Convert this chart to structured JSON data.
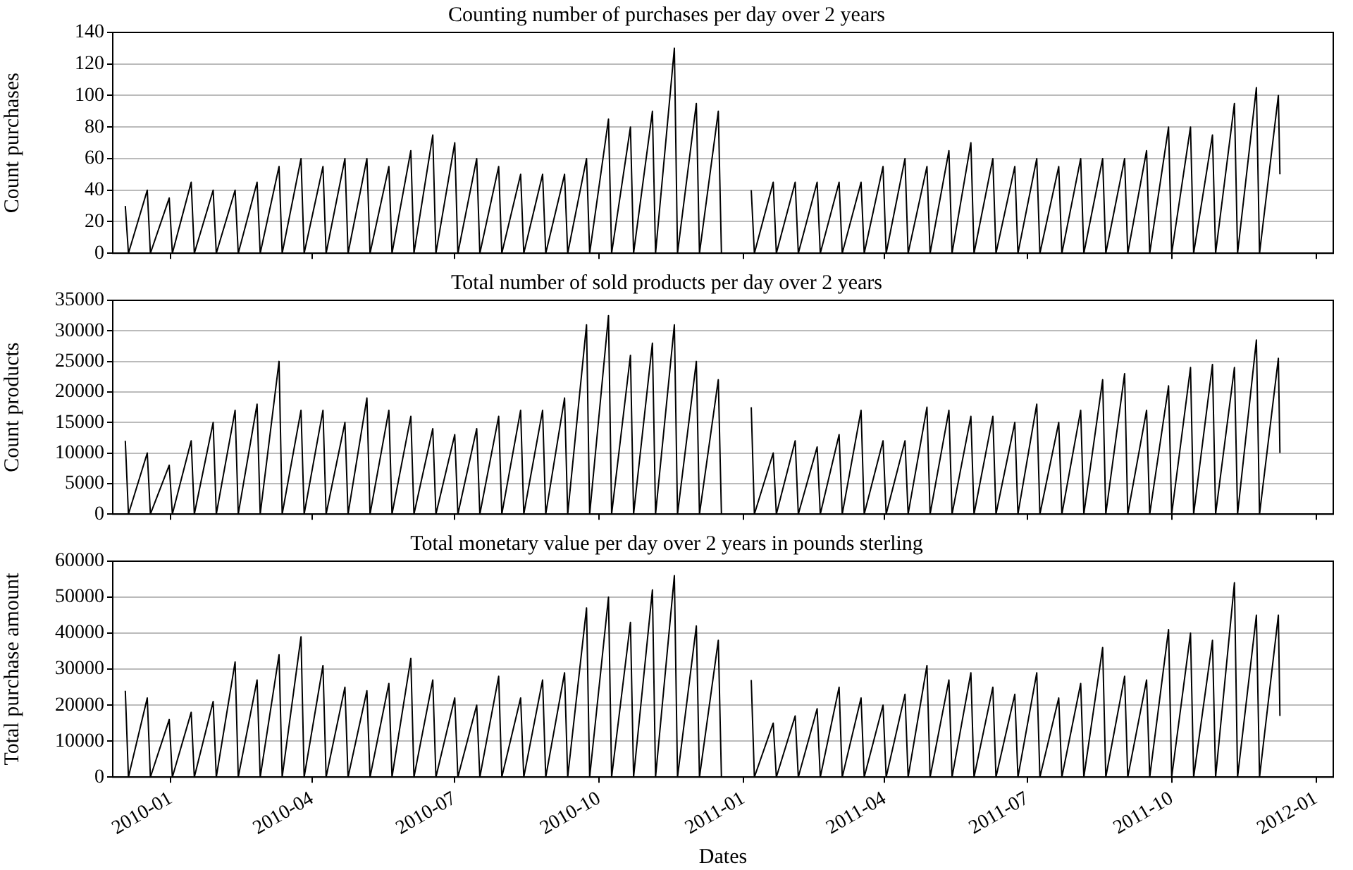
{
  "chart_data": [
    {
      "type": "line",
      "title": "Counting number of purchases per day over 2 years",
      "ylabel": "Count purchases",
      "color": "#000000",
      "grid": "y",
      "legend": false,
      "tick_labels": "y",
      "xlim": [
        "2009-11-25",
        "2012-01-12"
      ],
      "xticks": [
        "2010-01",
        "2010-04",
        "2010-07",
        "2010-10",
        "2011-01",
        "2011-04",
        "2011-07",
        "2011-10",
        "2012-01"
      ],
      "ylim": [
        0,
        140
      ],
      "yticks": [
        0,
        20,
        40,
        60,
        80,
        100,
        120,
        140
      ],
      "x": [
        "2009-12-03",
        "2009-12-05",
        "2009-12-17",
        "2009-12-19",
        "2009-12-31",
        "2010-01-02",
        "2010-01-14",
        "2010-01-16",
        "2010-01-28",
        "2010-01-30",
        "2010-02-11",
        "2010-02-13",
        "2010-02-25",
        "2010-02-27",
        "2010-03-11",
        "2010-03-13",
        "2010-03-25",
        "2010-03-27",
        "2010-04-08",
        "2010-04-10",
        "2010-04-22",
        "2010-04-24",
        "2010-05-06",
        "2010-05-08",
        "2010-05-20",
        "2010-05-22",
        "2010-06-03",
        "2010-06-05",
        "2010-06-17",
        "2010-06-19",
        "2010-07-01",
        "2010-07-03",
        "2010-07-15",
        "2010-07-17",
        "2010-07-29",
        "2010-07-31",
        "2010-08-12",
        "2010-08-14",
        "2010-08-26",
        "2010-08-28",
        "2010-09-09",
        "2010-09-11",
        "2010-09-23",
        "2010-09-25",
        "2010-10-07",
        "2010-10-09",
        "2010-10-21",
        "2010-10-23",
        "2010-11-04",
        "2010-11-06",
        "2010-11-18",
        "2010-11-20",
        "2010-12-02",
        "2010-12-04",
        "2010-12-16",
        "2010-12-18",
        "2010-12-30",
        "2011-01-06",
        "2011-01-08",
        "2011-01-20",
        "2011-01-22",
        "2011-02-03",
        "2011-02-05",
        "2011-02-17",
        "2011-02-19",
        "2011-03-03",
        "2011-03-05",
        "2011-03-17",
        "2011-03-19",
        "2011-03-31",
        "2011-04-02",
        "2011-04-14",
        "2011-04-16",
        "2011-04-28",
        "2011-04-30",
        "2011-05-12",
        "2011-05-14",
        "2011-05-26",
        "2011-05-28",
        "2011-06-09",
        "2011-06-11",
        "2011-06-23",
        "2011-06-25",
        "2011-07-07",
        "2011-07-09",
        "2011-07-21",
        "2011-07-23",
        "2011-08-04",
        "2011-08-06",
        "2011-08-18",
        "2011-08-20",
        "2011-09-01",
        "2011-09-03",
        "2011-09-15",
        "2011-09-17",
        "2011-09-29",
        "2011-10-01",
        "2011-10-13",
        "2011-10-15",
        "2011-10-27",
        "2011-10-29",
        "2011-11-10",
        "2011-11-12",
        "2011-11-24",
        "2011-11-26",
        "2011-12-08",
        "2011-12-09"
      ],
      "values": [
        30,
        0,
        40,
        0,
        35,
        0,
        45,
        0,
        40,
        0,
        40,
        0,
        45,
        0,
        55,
        0,
        60,
        0,
        55,
        0,
        60,
        0,
        60,
        0,
        55,
        0,
        65,
        0,
        75,
        0,
        70,
        0,
        60,
        0,
        55,
        0,
        50,
        0,
        50,
        0,
        50,
        0,
        60,
        0,
        85,
        0,
        80,
        0,
        90,
        0,
        130,
        0,
        95,
        0,
        90,
        0,
        null,
        40,
        0,
        45,
        0,
        45,
        0,
        45,
        0,
        45,
        0,
        45,
        0,
        55,
        0,
        60,
        0,
        55,
        0,
        65,
        0,
        70,
        0,
        60,
        0,
        55,
        0,
        60,
        0,
        55,
        0,
        60,
        0,
        60,
        0,
        60,
        0,
        65,
        0,
        80,
        0,
        80,
        0,
        75,
        0,
        95,
        0,
        105,
        0,
        100,
        50
      ]
    },
    {
      "type": "line",
      "title": "Total number of sold products per day over 2 years",
      "ylabel": "Count products",
      "color": "#000000",
      "grid": "y",
      "legend": false,
      "tick_labels": "y",
      "xlim": [
        "2009-11-25",
        "2012-01-12"
      ],
      "xticks": [
        "2010-01",
        "2010-04",
        "2010-07",
        "2010-10",
        "2011-01",
        "2011-04",
        "2011-07",
        "2011-10",
        "2012-01"
      ],
      "ylim": [
        0,
        35000
      ],
      "yticks": [
        0,
        5000,
        10000,
        15000,
        20000,
        25000,
        30000,
        35000
      ],
      "x": [
        "2009-12-03",
        "2009-12-05",
        "2009-12-17",
        "2009-12-19",
        "2009-12-31",
        "2010-01-02",
        "2010-01-14",
        "2010-01-16",
        "2010-01-28",
        "2010-01-30",
        "2010-02-11",
        "2010-02-13",
        "2010-02-25",
        "2010-02-27",
        "2010-03-11",
        "2010-03-13",
        "2010-03-25",
        "2010-03-27",
        "2010-04-08",
        "2010-04-10",
        "2010-04-22",
        "2010-04-24",
        "2010-05-06",
        "2010-05-08",
        "2010-05-20",
        "2010-05-22",
        "2010-06-03",
        "2010-06-05",
        "2010-06-17",
        "2010-06-19",
        "2010-07-01",
        "2010-07-03",
        "2010-07-15",
        "2010-07-17",
        "2010-07-29",
        "2010-07-31",
        "2010-08-12",
        "2010-08-14",
        "2010-08-26",
        "2010-08-28",
        "2010-09-09",
        "2010-09-11",
        "2010-09-23",
        "2010-09-25",
        "2010-10-07",
        "2010-10-09",
        "2010-10-21",
        "2010-10-23",
        "2010-11-04",
        "2010-11-06",
        "2010-11-18",
        "2010-11-20",
        "2010-12-02",
        "2010-12-04",
        "2010-12-16",
        "2010-12-18",
        "2010-12-30",
        "2011-01-06",
        "2011-01-08",
        "2011-01-20",
        "2011-01-22",
        "2011-02-03",
        "2011-02-05",
        "2011-02-17",
        "2011-02-19",
        "2011-03-03",
        "2011-03-05",
        "2011-03-17",
        "2011-03-19",
        "2011-03-31",
        "2011-04-02",
        "2011-04-14",
        "2011-04-16",
        "2011-04-28",
        "2011-04-30",
        "2011-05-12",
        "2011-05-14",
        "2011-05-26",
        "2011-05-28",
        "2011-06-09",
        "2011-06-11",
        "2011-06-23",
        "2011-06-25",
        "2011-07-07",
        "2011-07-09",
        "2011-07-21",
        "2011-07-23",
        "2011-08-04",
        "2011-08-06",
        "2011-08-18",
        "2011-08-20",
        "2011-09-01",
        "2011-09-03",
        "2011-09-15",
        "2011-09-17",
        "2011-09-29",
        "2011-10-01",
        "2011-10-13",
        "2011-10-15",
        "2011-10-27",
        "2011-10-29",
        "2011-11-10",
        "2011-11-12",
        "2011-11-24",
        "2011-11-26",
        "2011-12-08",
        "2011-12-09"
      ],
      "values": [
        12000,
        0,
        10000,
        0,
        8000,
        0,
        12000,
        0,
        15000,
        0,
        17000,
        0,
        18000,
        0,
        25000,
        0,
        17000,
        0,
        17000,
        0,
        15000,
        0,
        19000,
        0,
        17000,
        0,
        16000,
        0,
        14000,
        0,
        13000,
        0,
        14000,
        0,
        16000,
        0,
        17000,
        0,
        17000,
        0,
        19000,
        0,
        31000,
        0,
        32500,
        0,
        26000,
        0,
        28000,
        0,
        31000,
        0,
        25000,
        0,
        22000,
        0,
        null,
        17500,
        0,
        10000,
        0,
        12000,
        0,
        11000,
        0,
        13000,
        0,
        17000,
        0,
        12000,
        0,
        12000,
        0,
        17500,
        0,
        17000,
        0,
        16000,
        0,
        16000,
        0,
        15000,
        0,
        18000,
        0,
        15000,
        0,
        17000,
        0,
        22000,
        0,
        23000,
        0,
        17000,
        0,
        21000,
        0,
        24000,
        0,
        24500,
        0,
        24000,
        0,
        28500,
        0,
        25500,
        10000
      ]
    },
    {
      "type": "line",
      "title": "Total monetary value per day over 2 years in pounds sterling",
      "xlabel": "Dates",
      "ylabel": "Total purchase amount",
      "color": "#000000",
      "grid": "y",
      "legend": false,
      "xlim": [
        "2009-11-25",
        "2012-01-12"
      ],
      "xticks": [
        "2010-01",
        "2010-04",
        "2010-07",
        "2010-10",
        "2011-01",
        "2011-04",
        "2011-07",
        "2011-10",
        "2012-01"
      ],
      "ylim": [
        0,
        60000
      ],
      "yticks": [
        0,
        10000,
        20000,
        30000,
        40000,
        50000,
        60000
      ],
      "x": [
        "2009-12-03",
        "2009-12-05",
        "2009-12-17",
        "2009-12-19",
        "2009-12-31",
        "2010-01-02",
        "2010-01-14",
        "2010-01-16",
        "2010-01-28",
        "2010-01-30",
        "2010-02-11",
        "2010-02-13",
        "2010-02-25",
        "2010-02-27",
        "2010-03-11",
        "2010-03-13",
        "2010-03-25",
        "2010-03-27",
        "2010-04-08",
        "2010-04-10",
        "2010-04-22",
        "2010-04-24",
        "2010-05-06",
        "2010-05-08",
        "2010-05-20",
        "2010-05-22",
        "2010-06-03",
        "2010-06-05",
        "2010-06-17",
        "2010-06-19",
        "2010-07-01",
        "2010-07-03",
        "2010-07-15",
        "2010-07-17",
        "2010-07-29",
        "2010-07-31",
        "2010-08-12",
        "2010-08-14",
        "2010-08-26",
        "2010-08-28",
        "2010-09-09",
        "2010-09-11",
        "2010-09-23",
        "2010-09-25",
        "2010-10-07",
        "2010-10-09",
        "2010-10-21",
        "2010-10-23",
        "2010-11-04",
        "2010-11-06",
        "2010-11-18",
        "2010-11-20",
        "2010-12-02",
        "2010-12-04",
        "2010-12-16",
        "2010-12-18",
        "2010-12-30",
        "2011-01-06",
        "2011-01-08",
        "2011-01-20",
        "2011-01-22",
        "2011-02-03",
        "2011-02-05",
        "2011-02-17",
        "2011-02-19",
        "2011-03-03",
        "2011-03-05",
        "2011-03-17",
        "2011-03-19",
        "2011-03-31",
        "2011-04-02",
        "2011-04-14",
        "2011-04-16",
        "2011-04-28",
        "2011-04-30",
        "2011-05-12",
        "2011-05-14",
        "2011-05-26",
        "2011-05-28",
        "2011-06-09",
        "2011-06-11",
        "2011-06-23",
        "2011-06-25",
        "2011-07-07",
        "2011-07-09",
        "2011-07-21",
        "2011-07-23",
        "2011-08-04",
        "2011-08-06",
        "2011-08-18",
        "2011-08-20",
        "2011-09-01",
        "2011-09-03",
        "2011-09-15",
        "2011-09-17",
        "2011-09-29",
        "2011-10-01",
        "2011-10-13",
        "2011-10-15",
        "2011-10-27",
        "2011-10-29",
        "2011-11-10",
        "2011-11-12",
        "2011-11-24",
        "2011-11-26",
        "2011-12-08",
        "2011-12-09"
      ],
      "values": [
        24000,
        0,
        22000,
        0,
        16000,
        0,
        18000,
        0,
        21000,
        0,
        32000,
        0,
        27000,
        0,
        34000,
        0,
        39000,
        0,
        31000,
        0,
        25000,
        0,
        24000,
        0,
        26000,
        0,
        33000,
        0,
        27000,
        0,
        22000,
        0,
        20000,
        0,
        28000,
        0,
        22000,
        0,
        27000,
        0,
        29000,
        0,
        47000,
        0,
        50000,
        0,
        43000,
        0,
        52000,
        0,
        56000,
        0,
        42000,
        0,
        38000,
        0,
        null,
        27000,
        0,
        15000,
        0,
        17000,
        0,
        19000,
        0,
        25000,
        0,
        22000,
        0,
        20000,
        0,
        23000,
        0,
        31000,
        0,
        27000,
        0,
        29000,
        0,
        25000,
        0,
        23000,
        0,
        29000,
        0,
        22000,
        0,
        26000,
        0,
        36000,
        0,
        28000,
        0,
        27000,
        0,
        41000,
        0,
        40000,
        0,
        38000,
        0,
        54000,
        0,
        45000,
        0,
        45000,
        17000
      ]
    }
  ]
}
